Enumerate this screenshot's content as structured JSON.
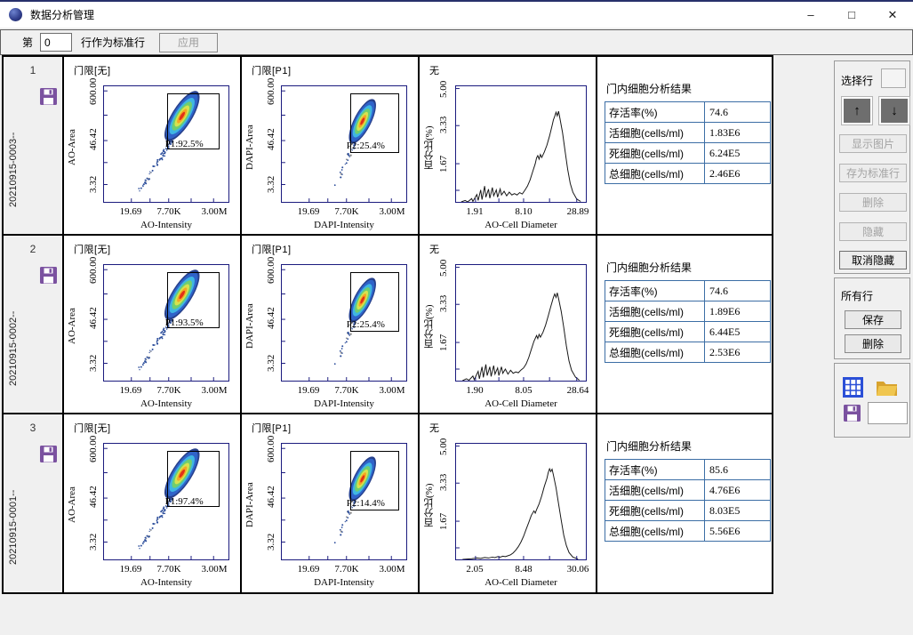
{
  "window": {
    "title": "数据分析管理",
    "controls": {
      "minimize": "–",
      "maximize": "□",
      "close": "✕"
    }
  },
  "toolbar": {
    "label_prefix": "第",
    "row_value": "0",
    "label_suffix": "行作为标准行",
    "apply": "应用"
  },
  "rows": [
    {
      "index": "1",
      "sample_id": "20210915-0003--",
      "scatter_ao": {
        "title": "门限[无]",
        "gate": "P1:92.5%",
        "xlabel": "AO-Intensity",
        "ylabel": "AO-Area",
        "xticks": [
          "19.69",
          "7.70K",
          "3.00M"
        ],
        "yticks": [
          "600.00",
          "46.42",
          "3.32"
        ]
      },
      "scatter_dapi": {
        "title": "门限[P1]",
        "gate": "P2:25.4%",
        "xlabel": "DAPI-Intensity",
        "ylabel": "DAPI-Area",
        "xticks": [
          "19.69",
          "7.70K",
          "3.00M"
        ],
        "yticks": [
          "600.00",
          "46.42",
          "3.32"
        ]
      },
      "histogram": {
        "title": "无",
        "xlabel": "AO-Cell Diameter",
        "ylabel": "百分比(%)",
        "xticks": [
          "1.91",
          "8.10",
          "28.89"
        ],
        "yticks": [
          "5.00",
          "3.33",
          "1.67"
        ],
        "ymax": 5,
        "curve": [
          [
            0.04,
            0
          ],
          [
            0.07,
            0.06
          ],
          [
            0.09,
            0
          ],
          [
            0.12,
            0.14
          ],
          [
            0.13,
            0.02
          ],
          [
            0.16,
            0.32
          ],
          [
            0.17,
            0.06
          ],
          [
            0.19,
            0.52
          ],
          [
            0.2,
            0.1
          ],
          [
            0.22,
            0.68
          ],
          [
            0.23,
            0.2
          ],
          [
            0.25,
            0.55
          ],
          [
            0.26,
            0.16
          ],
          [
            0.28,
            0.62
          ],
          [
            0.29,
            0.26
          ],
          [
            0.31,
            0.52
          ],
          [
            0.32,
            0.2
          ],
          [
            0.34,
            0.56
          ],
          [
            0.35,
            0.3
          ],
          [
            0.37,
            0.46
          ],
          [
            0.39,
            0.26
          ],
          [
            0.41,
            0.42
          ],
          [
            0.43,
            0.3
          ],
          [
            0.45,
            0.36
          ],
          [
            0.47,
            0.3
          ],
          [
            0.49,
            0.4
          ],
          [
            0.51,
            0.34
          ],
          [
            0.53,
            0.5
          ],
          [
            0.55,
            0.68
          ],
          [
            0.57,
            0.95
          ],
          [
            0.59,
            1.3
          ],
          [
            0.61,
            1.65
          ],
          [
            0.62,
            1.9
          ],
          [
            0.63,
            2.0
          ],
          [
            0.64,
            1.85
          ],
          [
            0.65,
            2.05
          ],
          [
            0.66,
            1.92
          ],
          [
            0.68,
            2.15
          ],
          [
            0.7,
            2.45
          ],
          [
            0.72,
            2.85
          ],
          [
            0.74,
            3.3
          ],
          [
            0.75,
            3.55
          ],
          [
            0.76,
            3.7
          ],
          [
            0.77,
            3.88
          ],
          [
            0.78,
            3.72
          ],
          [
            0.79,
            3.92
          ],
          [
            0.8,
            3.62
          ],
          [
            0.82,
            3.0
          ],
          [
            0.84,
            2.2
          ],
          [
            0.86,
            1.4
          ],
          [
            0.88,
            0.8
          ],
          [
            0.9,
            0.42
          ],
          [
            0.93,
            0.12
          ],
          [
            0.96,
            0.02
          ]
        ]
      },
      "results": {
        "title": "门内细胞分析结果",
        "items": [
          {
            "label": "存活率(%)",
            "value": "74.6"
          },
          {
            "label": "活细胞(cells/ml)",
            "value": "1.83E6"
          },
          {
            "label": "死细胞(cells/ml)",
            "value": "6.24E5"
          },
          {
            "label": "总细胞(cells/ml)",
            "value": "2.46E6"
          }
        ]
      }
    },
    {
      "index": "2",
      "sample_id": "20210915-0002--",
      "scatter_ao": {
        "title": "门限[无]",
        "gate": "P1:93.5%",
        "xlabel": "AO-Intensity",
        "ylabel": "AO-Area",
        "xticks": [
          "19.69",
          "7.70K",
          "3.00M"
        ],
        "yticks": [
          "600.00",
          "46.42",
          "3.32"
        ]
      },
      "scatter_dapi": {
        "title": "门限[P1]",
        "gate": "P2:25.4%",
        "xlabel": "DAPI-Intensity",
        "ylabel": "DAPI-Area",
        "xticks": [
          "19.69",
          "7.70K",
          "3.00M"
        ],
        "yticks": [
          "600.00",
          "46.42",
          "3.32"
        ]
      },
      "histogram": {
        "title": "无",
        "xlabel": "AO-Cell Diameter",
        "ylabel": "百分比(%)",
        "xticks": [
          "1.90",
          "8.05",
          "28.64"
        ],
        "yticks": [
          "5.00",
          "3.33",
          "1.67"
        ],
        "ymax": 5,
        "curve": [
          [
            0.05,
            0
          ],
          [
            0.08,
            0.08
          ],
          [
            0.1,
            0.02
          ],
          [
            0.13,
            0.2
          ],
          [
            0.14,
            0.04
          ],
          [
            0.17,
            0.4
          ],
          [
            0.18,
            0.08
          ],
          [
            0.2,
            0.6
          ],
          [
            0.21,
            0.14
          ],
          [
            0.23,
            0.7
          ],
          [
            0.24,
            0.22
          ],
          [
            0.26,
            0.6
          ],
          [
            0.27,
            0.18
          ],
          [
            0.29,
            0.65
          ],
          [
            0.3,
            0.28
          ],
          [
            0.32,
            0.55
          ],
          [
            0.33,
            0.22
          ],
          [
            0.35,
            0.6
          ],
          [
            0.36,
            0.32
          ],
          [
            0.38,
            0.5
          ],
          [
            0.4,
            0.28
          ],
          [
            0.42,
            0.45
          ],
          [
            0.44,
            0.32
          ],
          [
            0.46,
            0.38
          ],
          [
            0.48,
            0.34
          ],
          [
            0.5,
            0.46
          ],
          [
            0.52,
            0.55
          ],
          [
            0.54,
            0.72
          ],
          [
            0.56,
            1.0
          ],
          [
            0.58,
            1.35
          ],
          [
            0.6,
            1.7
          ],
          [
            0.62,
            1.95
          ],
          [
            0.63,
            1.82
          ],
          [
            0.64,
            2.0
          ],
          [
            0.65,
            1.88
          ],
          [
            0.67,
            2.1
          ],
          [
            0.69,
            2.4
          ],
          [
            0.71,
            2.8
          ],
          [
            0.73,
            3.2
          ],
          [
            0.75,
            3.6
          ],
          [
            0.76,
            3.75
          ],
          [
            0.77,
            3.6
          ],
          [
            0.78,
            3.8
          ],
          [
            0.79,
            3.55
          ],
          [
            0.81,
            3.0
          ],
          [
            0.83,
            2.3
          ],
          [
            0.85,
            1.5
          ],
          [
            0.87,
            0.85
          ],
          [
            0.89,
            0.45
          ],
          [
            0.92,
            0.15
          ],
          [
            0.95,
            0.02
          ]
        ]
      },
      "results": {
        "title": "门内细胞分析结果",
        "items": [
          {
            "label": "存活率(%)",
            "value": "74.6"
          },
          {
            "label": "活细胞(cells/ml)",
            "value": "1.89E6"
          },
          {
            "label": "死细胞(cells/ml)",
            "value": "6.44E5"
          },
          {
            "label": "总细胞(cells/ml)",
            "value": "2.53E6"
          }
        ]
      }
    },
    {
      "index": "3",
      "sample_id": "20210915-0001--",
      "scatter_ao": {
        "title": "门限[无]",
        "gate": "P1:97.4%",
        "xlabel": "AO-Intensity",
        "ylabel": "AO-Area",
        "xticks": [
          "19.69",
          "7.70K",
          "3.00M"
        ],
        "yticks": [
          "600.00",
          "46.42",
          "3.32"
        ]
      },
      "scatter_dapi": {
        "title": "门限[P1]",
        "gate": "P2:14.4%",
        "xlabel": "DAPI-Intensity",
        "ylabel": "DAPI-Area",
        "xticks": [
          "19.69",
          "7.70K",
          "3.00M"
        ],
        "yticks": [
          "600.00",
          "46.42",
          "3.32"
        ]
      },
      "histogram": {
        "title": "无",
        "xlabel": "AO-Cell Diameter",
        "ylabel": "百分比(%)",
        "xticks": [
          "2.05",
          "8.48",
          "30.06"
        ],
        "yticks": [
          "5.00",
          "3.33",
          "1.67"
        ],
        "ymax": 5,
        "curve": [
          [
            0.05,
            0
          ],
          [
            0.12,
            0.03
          ],
          [
            0.16,
            0.06
          ],
          [
            0.19,
            0.04
          ],
          [
            0.22,
            0.08
          ],
          [
            0.25,
            0.06
          ],
          [
            0.28,
            0.1
          ],
          [
            0.3,
            0.08
          ],
          [
            0.32,
            0.12
          ],
          [
            0.34,
            0.1
          ],
          [
            0.36,
            0.14
          ],
          [
            0.38,
            0.12
          ],
          [
            0.4,
            0.16
          ],
          [
            0.42,
            0.2
          ],
          [
            0.44,
            0.28
          ],
          [
            0.46,
            0.4
          ],
          [
            0.48,
            0.55
          ],
          [
            0.5,
            0.75
          ],
          [
            0.52,
            1.0
          ],
          [
            0.54,
            1.3
          ],
          [
            0.56,
            1.6
          ],
          [
            0.58,
            1.9
          ],
          [
            0.6,
            2.1
          ],
          [
            0.61,
            2.0
          ],
          [
            0.62,
            2.15
          ],
          [
            0.64,
            2.4
          ],
          [
            0.66,
            2.75
          ],
          [
            0.68,
            3.15
          ],
          [
            0.7,
            3.5
          ],
          [
            0.71,
            3.75
          ],
          [
            0.72,
            3.92
          ],
          [
            0.73,
            3.8
          ],
          [
            0.74,
            3.9
          ],
          [
            0.75,
            3.65
          ],
          [
            0.77,
            3.1
          ],
          [
            0.79,
            2.4
          ],
          [
            0.81,
            1.7
          ],
          [
            0.83,
            1.05
          ],
          [
            0.85,
            0.6
          ],
          [
            0.87,
            0.3
          ],
          [
            0.9,
            0.1
          ],
          [
            0.94,
            0.02
          ]
        ]
      },
      "results": {
        "title": "门内细胞分析结果",
        "items": [
          {
            "label": "存活率(%)",
            "value": "85.6"
          },
          {
            "label": "活细胞(cells/ml)",
            "value": "4.76E6"
          },
          {
            "label": "死细胞(cells/ml)",
            "value": "8.03E5"
          },
          {
            "label": "总细胞(cells/ml)",
            "value": "5.56E6"
          }
        ]
      }
    }
  ],
  "panel": {
    "select_row_label": "选择行",
    "up_arrow": "↑",
    "down_arrow": "↓",
    "show_image": "显示图片",
    "set_standard": "存为标准行",
    "delete_row": "删除",
    "hide": "隐藏",
    "unhide": "取消隐藏",
    "all_rows_label": "所有行",
    "save_all": "保存",
    "delete_all": "删除"
  },
  "colors": {
    "plot_frame": "#1b1b7e",
    "table_border": "#3c6ea5",
    "floppy_purple": "#7b52a0",
    "folder_yellow": "#ecc04a",
    "grid_blue": "#2b4fd7"
  }
}
